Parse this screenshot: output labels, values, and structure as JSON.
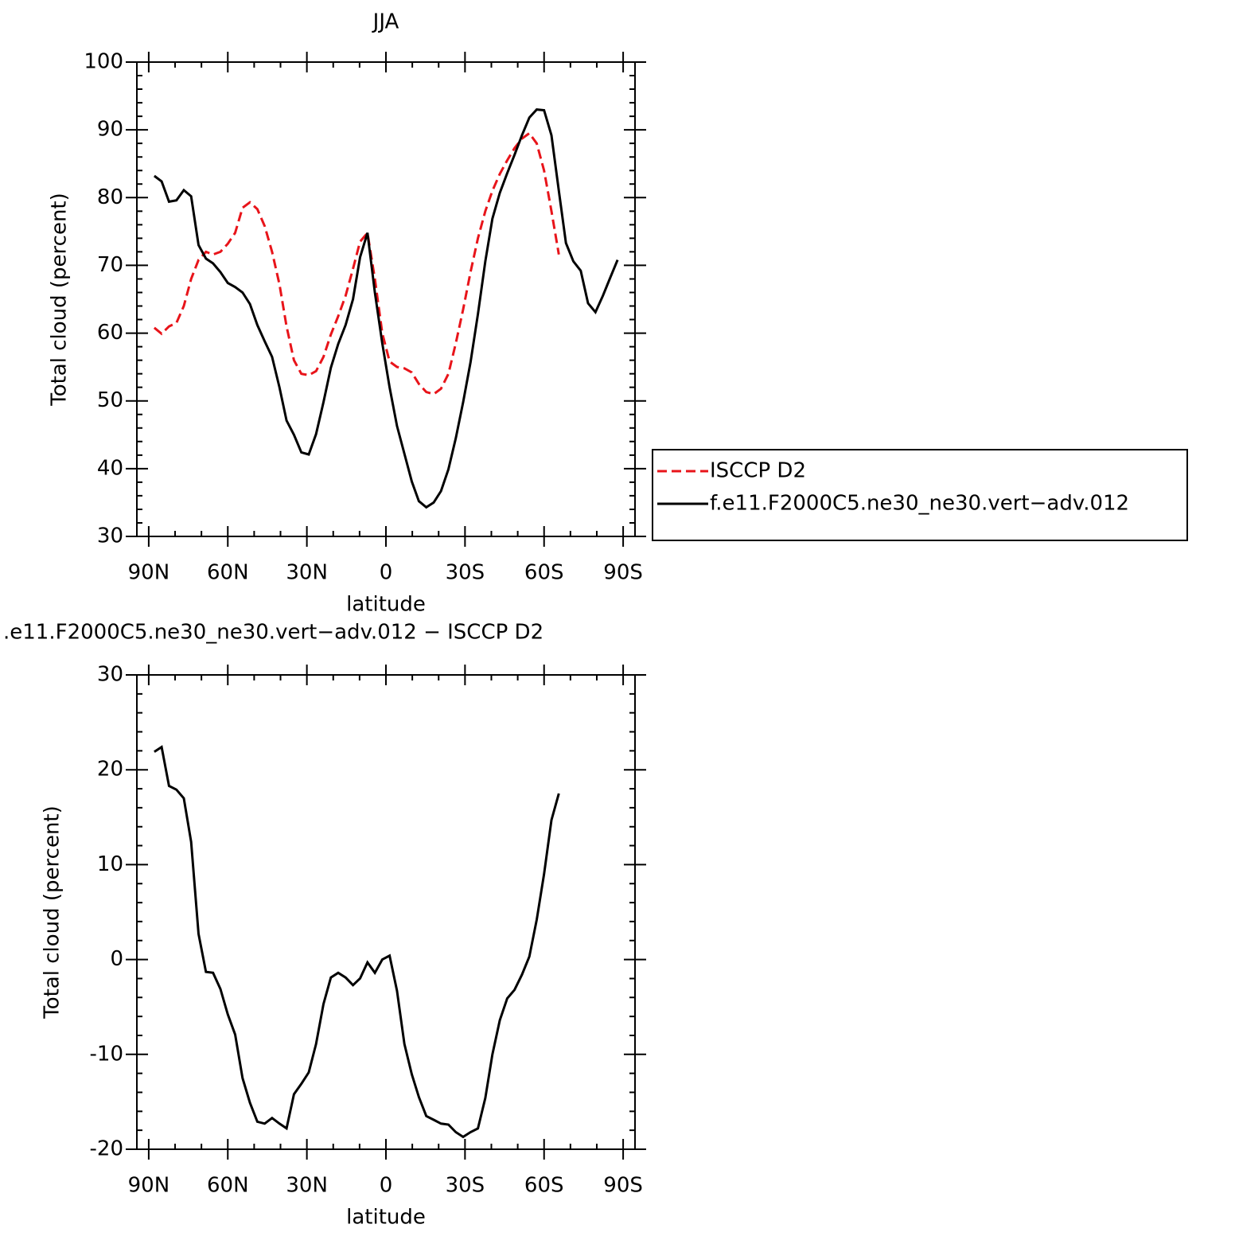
{
  "chart_data": [
    {
      "type": "line",
      "title": "JJA",
      "xlabel": "latitude",
      "ylabel": "Total cloud (percent)",
      "x": [
        87.9,
        85.1,
        82.3,
        79.5,
        76.7,
        73.9,
        71.1,
        68.3,
        65.6,
        62.8,
        60.0,
        57.2,
        54.4,
        51.6,
        48.8,
        46.0,
        43.2,
        40.4,
        37.7,
        34.9,
        32.1,
        29.3,
        26.5,
        23.7,
        20.9,
        18.1,
        15.3,
        12.5,
        9.8,
        7.0,
        4.2,
        1.4,
        -1.4,
        -4.2,
        -7.0,
        -9.8,
        -12.5,
        -15.3,
        -18.1,
        -20.9,
        -23.7,
        -26.5,
        -29.3,
        -32.1,
        -34.9,
        -37.7,
        -40.4,
        -43.2,
        -46.0,
        -48.8,
        -51.6,
        -54.4,
        -57.2,
        -60.0,
        -62.8,
        -65.6,
        -68.3,
        -71.1,
        -73.9,
        -76.7,
        -79.5,
        -82.3,
        -85.1,
        -87.9
      ],
      "series": [
        {
          "name": "ISCCP D2",
          "color": "#e8141a",
          "dashed": true,
          "values": [
            60.8,
            59.9,
            61.0,
            61.5,
            64.0,
            68.0,
            70.8,
            72.0,
            71.6,
            72.0,
            73.2,
            74.8,
            78.5,
            79.3,
            78.3,
            75.8,
            72.0,
            67.2,
            61.0,
            56.0,
            54.0,
            53.8,
            54.4,
            56.5,
            59.8,
            62.5,
            65.5,
            69.5,
            73.5,
            74.8,
            68.0,
            60.0,
            55.8,
            55.0,
            54.8,
            54.2,
            52.5,
            51.3,
            51.0,
            51.8,
            54.0,
            58.5,
            63.5,
            69.0,
            74.0,
            78.0,
            81.0,
            83.5,
            85.5,
            87.3,
            88.7,
            89.5,
            88.0,
            84.0,
            78.0,
            71.6,
            null,
            null,
            null,
            null,
            null,
            null,
            null,
            null
          ]
        },
        {
          "name": "f.e11.F2000C5.ne30_ne30.vert−adv.012",
          "color": "#000000",
          "dashed": false,
          "values": [
            83.2,
            82.4,
            79.4,
            79.6,
            81.1,
            80.2,
            73.0,
            71.0,
            70.3,
            69.0,
            67.4,
            66.8,
            66.0,
            64.3,
            61.2,
            58.8,
            56.5,
            52.0,
            47.1,
            45.0,
            42.4,
            42.1,
            45.1,
            49.8,
            54.9,
            58.4,
            61.2,
            65.0,
            71.2,
            74.8,
            66.0,
            58.5,
            52.0,
            46.3,
            42.2,
            38.1,
            35.2,
            34.3,
            35.0,
            36.7,
            39.9,
            44.5,
            49.8,
            55.7,
            62.8,
            70.6,
            76.9,
            80.7,
            83.6,
            86.3,
            89.2,
            91.8,
            93.0,
            92.9,
            89.2,
            81.0,
            73.3,
            70.6,
            69.2,
            64.4,
            63.1,
            65.5,
            68.2,
            70.8
          ]
        }
      ],
      "xlim": [
        94.5,
        -94.5
      ],
      "xticks": [
        {
          "value": 90,
          "label": "90N"
        },
        {
          "value": 60,
          "label": "60N"
        },
        {
          "value": 30,
          "label": "30N"
        },
        0,
        {
          "value": -30,
          "label": "30S"
        },
        {
          "value": -60,
          "label": "60S"
        },
        {
          "value": -90,
          "label": "90S"
        }
      ],
      "xminorticks": [
        80,
        70,
        50,
        40,
        20,
        10,
        -10,
        -20,
        -40,
        -50,
        -70,
        -80
      ],
      "ylim": [
        30,
        100
      ],
      "yticks": [
        30,
        40,
        50,
        60,
        70,
        80,
        90,
        100
      ],
      "yminorticks": [
        32,
        34,
        36,
        38,
        42,
        44,
        46,
        48,
        52,
        54,
        56,
        58,
        62,
        64,
        66,
        68,
        72,
        74,
        76,
        78,
        82,
        84,
        86,
        88,
        92,
        94,
        96,
        98
      ],
      "legend": "right"
    },
    {
      "type": "line",
      "title": ".e11.F2000C5.ne30_ne30.vert−adv.012 − ISCCP D2",
      "xlabel": "latitude",
      "ylabel": "Total cloud (percent)",
      "x": [
        87.9,
        85.1,
        82.3,
        79.5,
        76.7,
        73.9,
        71.1,
        68.3,
        65.6,
        62.8,
        60.0,
        57.2,
        54.4,
        51.6,
        48.8,
        46.0,
        43.2,
        40.4,
        37.7,
        34.9,
        32.1,
        29.3,
        26.5,
        23.7,
        20.9,
        18.1,
        15.3,
        12.5,
        9.8,
        7.0,
        4.2,
        1.4,
        -1.4,
        -4.2,
        -7.0,
        -9.8,
        -12.5,
        -15.3,
        -18.1,
        -20.9,
        -23.7,
        -26.5,
        -29.3,
        -32.1,
        -34.9,
        -37.7,
        -40.4,
        -43.2,
        -46.0,
        -48.8,
        -51.6,
        -54.4,
        -57.2,
        -60.0,
        -62.8,
        -65.6,
        -68.3,
        -71.1,
        -73.9,
        -76.7,
        -79.5,
        -82.3,
        -85.1,
        -87.9
      ],
      "color": "#000000",
      "values": [
        21.9,
        22.4,
        18.3,
        17.9,
        17.0,
        12.4,
        2.7,
        -1.3,
        -1.4,
        -3.1,
        -5.8,
        -7.9,
        -12.5,
        -15.1,
        -17.1,
        -17.3,
        -16.7,
        -17.3,
        -17.8,
        -14.2,
        -13.1,
        -11.9,
        -8.9,
        -4.7,
        -1.9,
        -1.4,
        -1.9,
        -2.7,
        -2.0,
        -0.3,
        -1.4,
        0.0,
        0.4,
        -3.3,
        -8.9,
        -12.1,
        -14.5,
        -16.5,
        -16.9,
        -17.3,
        -17.4,
        -18.2,
        -18.7,
        -18.2,
        -17.8,
        -14.6,
        -10.0,
        -6.4,
        -4.1,
        -3.2,
        -1.6,
        0.3,
        4.2,
        9.0,
        14.7,
        17.5,
        null,
        null,
        null,
        null,
        null,
        null,
        null,
        null
      ],
      "xlim": [
        94.5,
        -94.5
      ],
      "xticks": [
        {
          "value": 90,
          "label": "90N"
        },
        {
          "value": 60,
          "label": "60N"
        },
        {
          "value": 30,
          "label": "30N"
        },
        0,
        {
          "value": -30,
          "label": "30S"
        },
        {
          "value": -60,
          "label": "60S"
        },
        {
          "value": -90,
          "label": "90S"
        }
      ],
      "xminorticks": [
        80,
        70,
        50,
        40,
        20,
        10,
        -10,
        -20,
        -40,
        -50,
        -70,
        -80
      ],
      "ylim": [
        -20,
        30
      ],
      "yticks": [
        -20,
        -10,
        0,
        10,
        20,
        30
      ],
      "yminorticks": [
        -18,
        -16,
        -14,
        -12,
        -8,
        -6,
        -4,
        -2,
        2,
        4,
        6,
        8,
        12,
        14,
        16,
        18,
        22,
        24,
        26,
        28
      ]
    }
  ]
}
